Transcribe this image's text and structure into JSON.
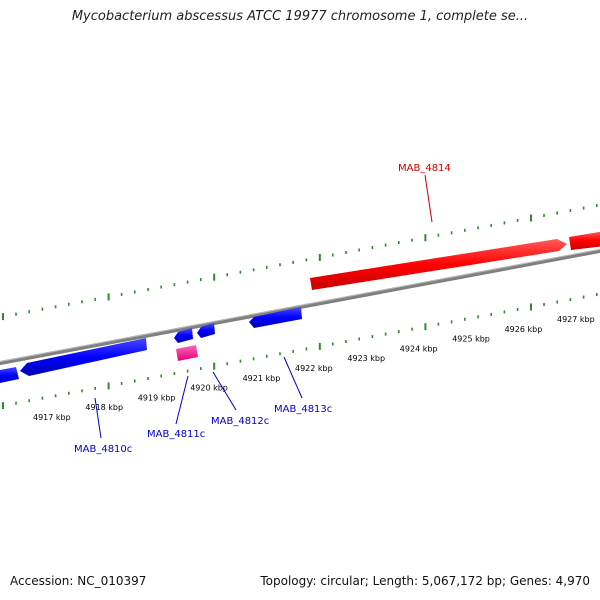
{
  "title": "Mycobacterium abscessus ATCC 19977 chromosome 1, complete se...",
  "accession": "Accession: NC_010397",
  "summary": "Topology: circular; Length: 5,067,172 bp; Genes: 4,970",
  "colors": {
    "backbone": "#808080",
    "ticks": "#2e8b2e",
    "forward_gene": "#ff0000",
    "reverse_gene": "#0000ff",
    "pseudo_gene": "#ff3399",
    "forward_label": "#cc0000",
    "reverse_label": "#0000cc"
  },
  "scale": {
    "tick_labels": [
      "4917 kbp",
      "4918 kbp",
      "4919 kbp",
      "4920 kbp",
      "4921 kbp",
      "4922 kbp",
      "4923 kbp",
      "4924 kbp",
      "4925 kbp",
      "4926 kbp",
      "4927 kbp"
    ]
  },
  "genes": [
    {
      "label": "MAB_4814",
      "strand": "forward"
    },
    {
      "label": "MAB_4813c",
      "strand": "reverse"
    },
    {
      "label": "MAB_4812c",
      "strand": "reverse"
    },
    {
      "label": "MAB_4811c",
      "strand": "reverse"
    },
    {
      "label": "MAB_4810c",
      "strand": "reverse"
    }
  ]
}
